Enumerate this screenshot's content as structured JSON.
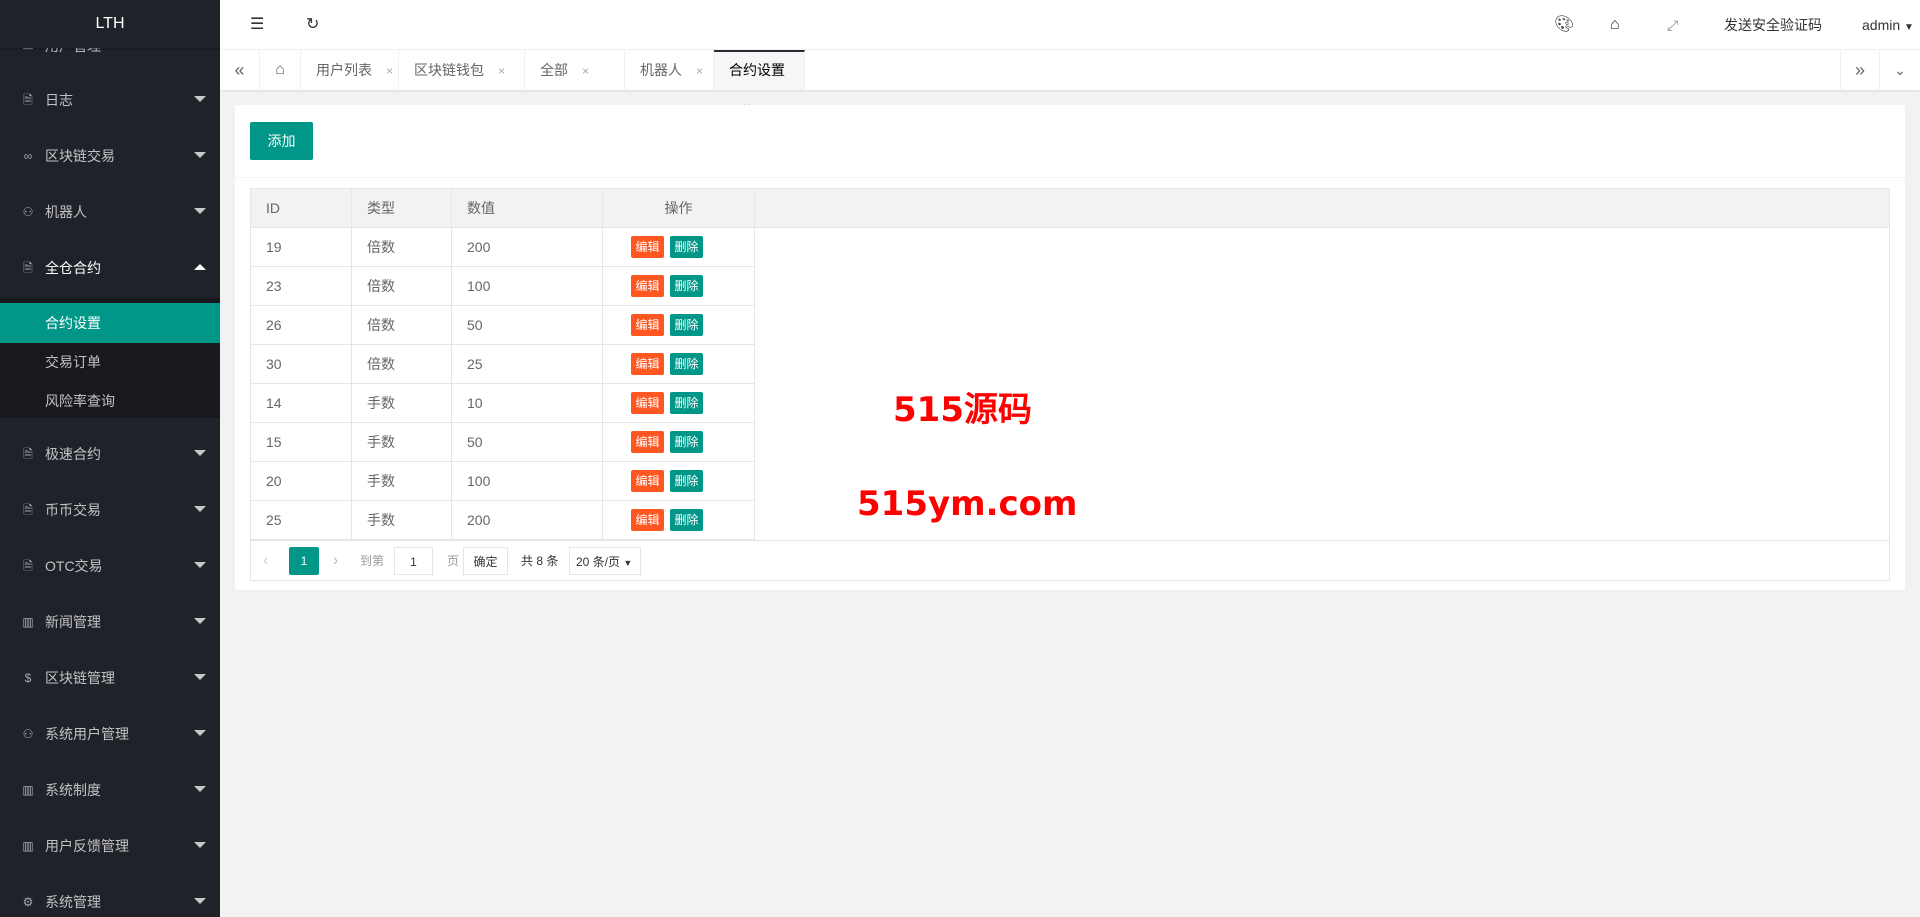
{
  "app": {
    "logo": "LTH"
  },
  "sidebar": {
    "partial_item": "用户管理",
    "items": [
      {
        "label": "日志",
        "icon": "doc-icon"
      },
      {
        "label": "区块链交易",
        "icon": "link-icon"
      },
      {
        "label": "机器人",
        "icon": "user-icon"
      },
      {
        "label": "全仓合约",
        "icon": "doc-icon",
        "expanded": true
      },
      {
        "label": "极速合约",
        "icon": "doc-icon"
      },
      {
        "label": "币币交易",
        "icon": "doc-icon"
      },
      {
        "label": "OTC交易",
        "icon": "doc-icon"
      },
      {
        "label": "新闻管理",
        "icon": "read-icon"
      },
      {
        "label": "区块链管理",
        "icon": "dollar-icon"
      },
      {
        "label": "系统用户管理",
        "icon": "user-icon"
      },
      {
        "label": "系统制度",
        "icon": "read-icon"
      },
      {
        "label": "用户反馈管理",
        "icon": "read-icon"
      },
      {
        "label": "系统管理",
        "icon": "gear-icon"
      }
    ],
    "sub_items": [
      {
        "label": "合约设置",
        "active": true
      },
      {
        "label": "交易订单"
      },
      {
        "label": "风险率查询"
      }
    ]
  },
  "header": {
    "send_code": "发送安全验证码",
    "user": "admin"
  },
  "tabs": [
    {
      "label": "用户列表"
    },
    {
      "label": "区块链钱包"
    },
    {
      "label": "全部"
    },
    {
      "label": "机器人"
    },
    {
      "label": "合约设置",
      "active": true
    }
  ],
  "tab_close": "×",
  "main": {
    "add_label": "添加",
    "columns": [
      "ID",
      "类型",
      "数值",
      "操作"
    ],
    "edit_label": "编辑",
    "delete_label": "删除",
    "rows": [
      [
        "19",
        "倍数",
        "200"
      ],
      [
        "23",
        "倍数",
        "100"
      ],
      [
        "26",
        "倍数",
        "50"
      ],
      [
        "30",
        "倍数",
        "25"
      ],
      [
        "14",
        "手数",
        "10"
      ],
      [
        "15",
        "手数",
        "50"
      ],
      [
        "20",
        "手数",
        "100"
      ],
      [
        "25",
        "手数",
        "200"
      ]
    ],
    "pagination": {
      "current": "1",
      "goto_label": "到第",
      "page_input": "1",
      "page_unit": "页",
      "confirm": "确定",
      "total": "共 8 条",
      "page_size": "20 条/页"
    }
  },
  "watermark": {
    "line1": "515源码",
    "line2": "515ym.com"
  },
  "colors": {
    "sidebar": "#20222a",
    "accent": "#009688",
    "edit": "#ff5722",
    "watermark": "#ff0000"
  }
}
